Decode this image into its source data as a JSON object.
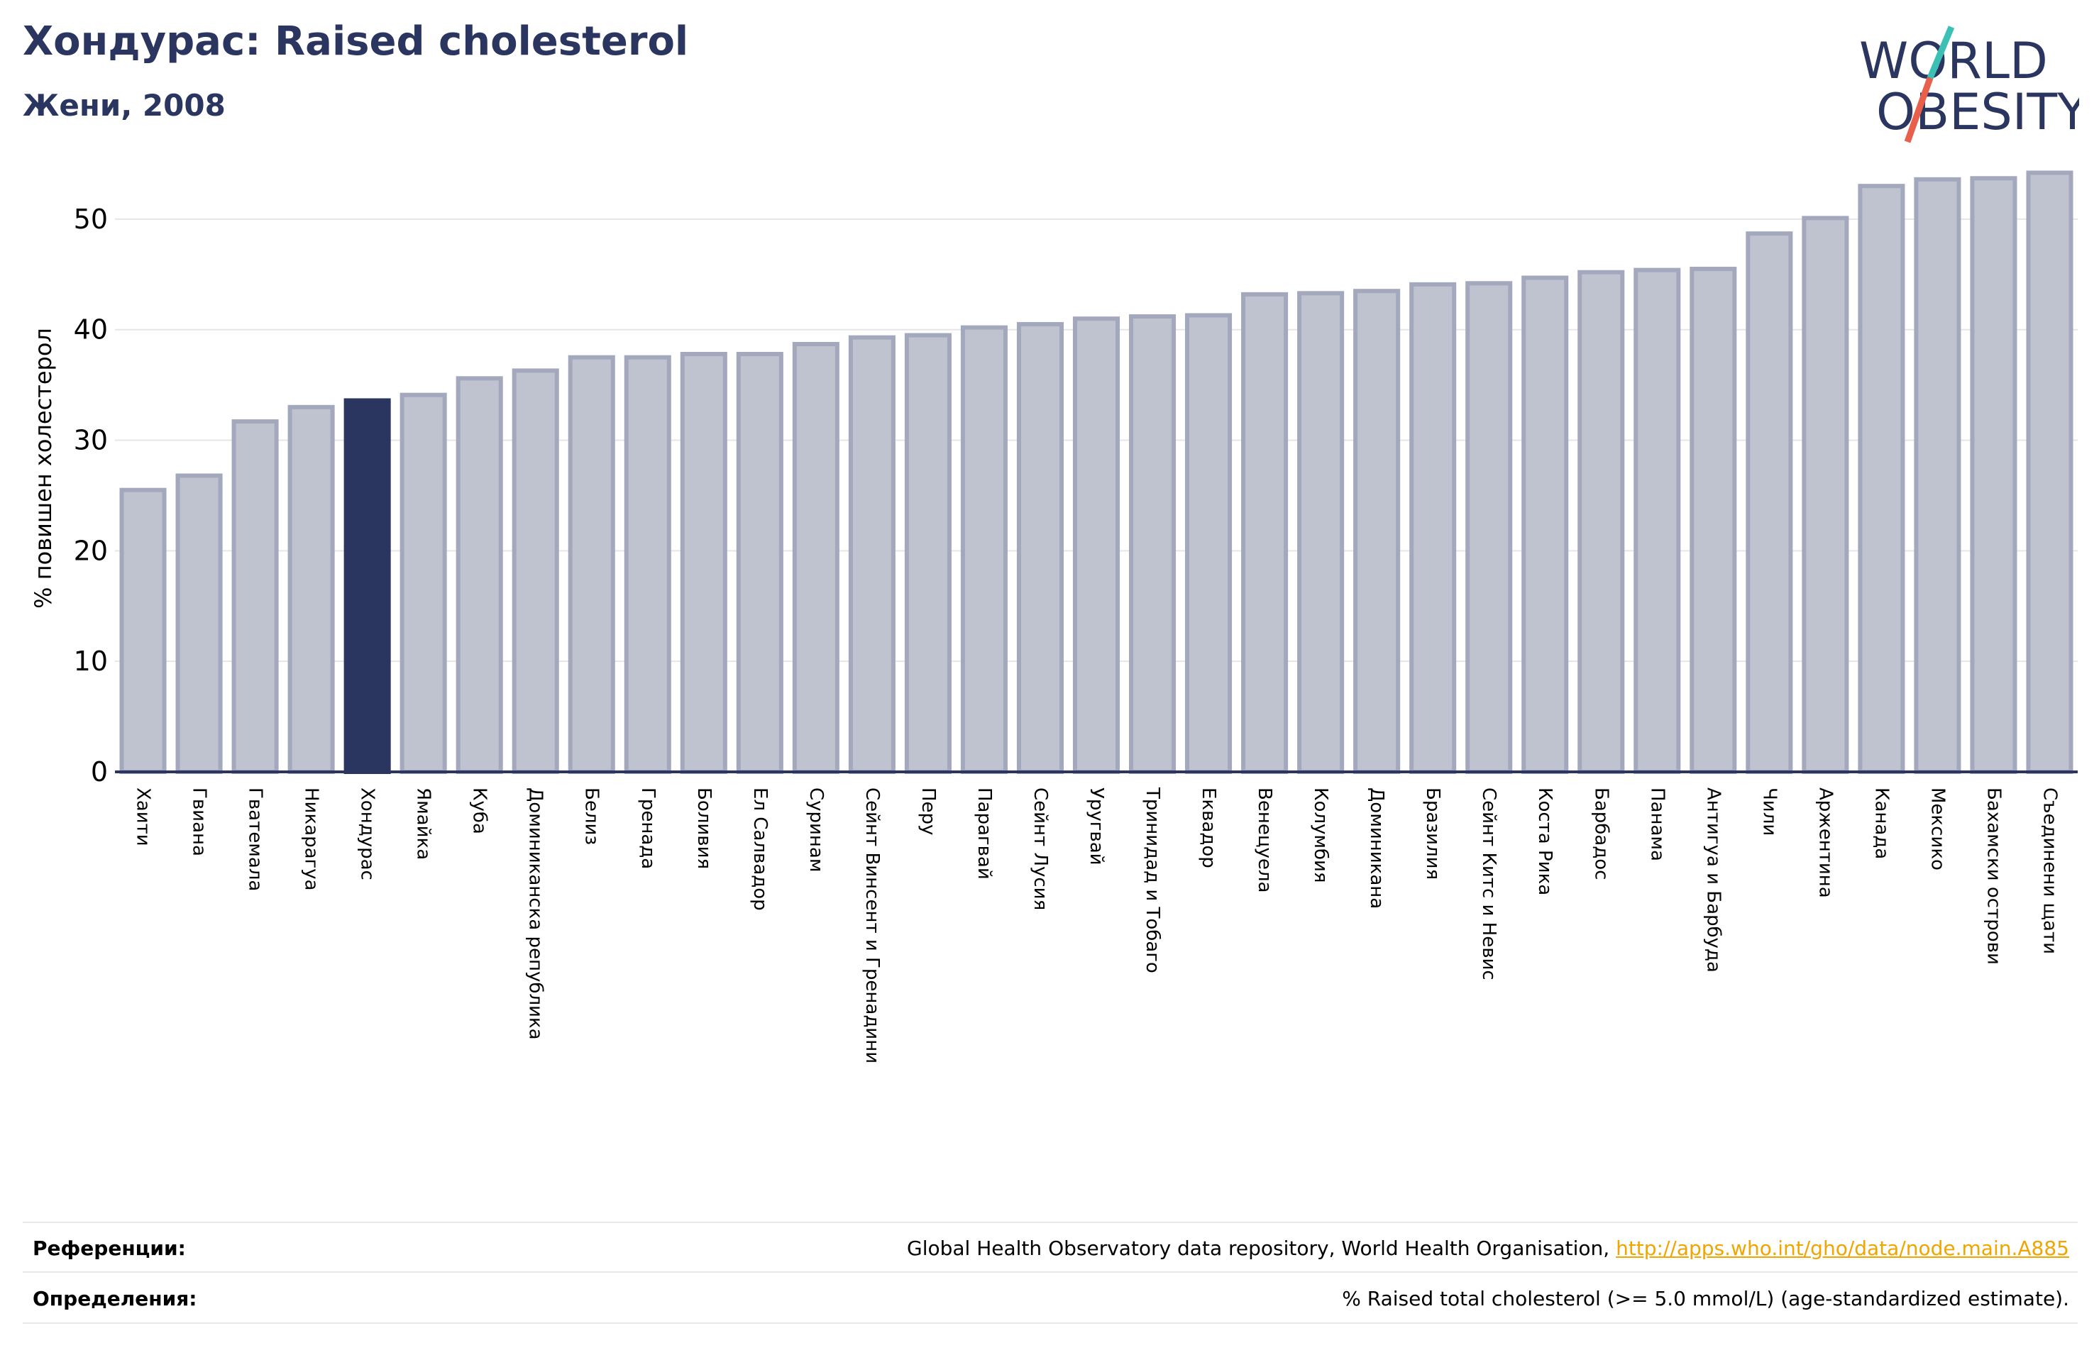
{
  "header": {
    "title": "Хондурас: Raised cholesterol",
    "subtitle": "Жени, 2008"
  },
  "logo": {
    "line1": "WORLD",
    "line2": "OBESITY",
    "colors": {
      "text": "#2a3560",
      "slash_teal": "#3cbfb4",
      "slash_red": "#e8604c"
    }
  },
  "colors": {
    "bar_fill": "#bfc2cf",
    "bar_stroke": "#a3a8bd",
    "highlight_fill": "#2a3560",
    "axis": "#2a3560",
    "grid": "#e6e6e6",
    "title": "#2a3560"
  },
  "chart_data": {
    "type": "bar",
    "ylabel": "% повишен холестерол",
    "ylim": [
      0,
      55
    ],
    "yticks": [
      0,
      10,
      20,
      30,
      40,
      50
    ],
    "grid": true,
    "highlight": "Хондурас",
    "categories": [
      "Хаити",
      "Гвиана",
      "Гватемала",
      "Никарагуа",
      "Хондурас",
      "Ямайка",
      "Куба",
      "Доминиканска република",
      "Белиз",
      "Гренада",
      "Боливия",
      "Ел Салвадор",
      "Суринам",
      "Сейнт Винсент и Гренадини",
      "Перу",
      "Парагвай",
      "Сейнт Лусия",
      "Уругвай",
      "Тринидад и Тобаго",
      "Еквадор",
      "Венецуела",
      "Колумбия",
      "Доминикана",
      "Бразилия",
      "Сейнт Китс и Невис",
      "Коста Рика",
      "Барбадос",
      "Панама",
      "Антигуа и Барбуда",
      "Чили",
      "Аржентина",
      "Канада",
      "Мексико",
      "Бахамски острови",
      "Съединени щати"
    ],
    "values": [
      25.5,
      26.8,
      31.7,
      33.0,
      33.6,
      34.1,
      35.6,
      36.3,
      37.5,
      37.5,
      37.8,
      37.8,
      38.7,
      39.3,
      39.5,
      40.2,
      40.5,
      41.0,
      41.2,
      41.3,
      43.2,
      43.3,
      43.5,
      44.1,
      44.2,
      44.7,
      45.2,
      45.4,
      45.5,
      48.7,
      50.1,
      53.0,
      53.6,
      53.7,
      54.2
    ]
  },
  "footer": {
    "references_label": "Референции:",
    "references_text": "Global Health Observatory data repository, World Health Organisation, ",
    "references_link": "http://apps.who.int/gho/data/node.main.A885",
    "definitions_label": "Определения:",
    "definitions_text": "% Raised total cholesterol (>= 5.0 mmol/L) (age-standardized estimate)."
  }
}
